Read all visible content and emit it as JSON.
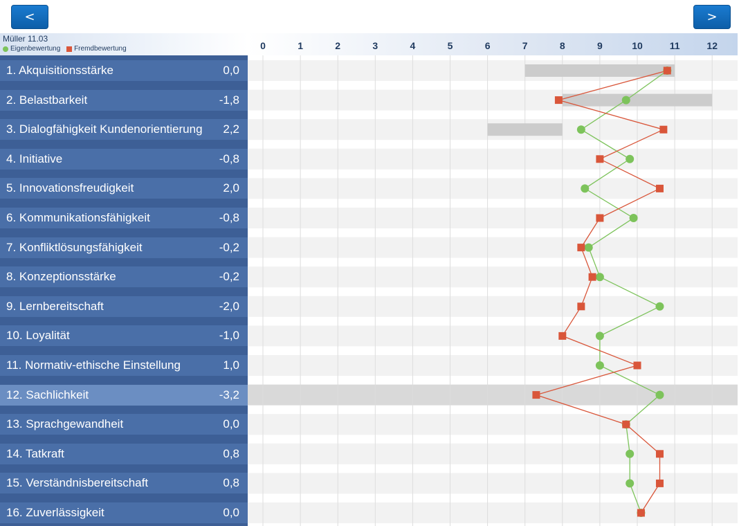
{
  "nav": {
    "prev_label": "<",
    "next_label": ">"
  },
  "header": {
    "person": "Müller 11.03",
    "legend": {
      "self_label": "Eigenbewertung",
      "other_label": "Fremdbewertung"
    }
  },
  "colors": {
    "self": "#7dc35b",
    "other": "#d9563a",
    "range_bar": "#cccccc",
    "row_stripe": "#f2f2f2",
    "selected_row": "#d9d9d9",
    "gridline": "#dddddd",
    "axis_text": "#1f3a5f"
  },
  "rows": [
    {
      "label": "1. Akquisitionsstärke",
      "diff": "0,0"
    },
    {
      "label": "2. Belastbarkeit",
      "diff": "-1,8"
    },
    {
      "label": "3. Dialogfähigkeit Kundenorientierung",
      "diff": "2,2"
    },
    {
      "label": "4. Initiative",
      "diff": "-0,8"
    },
    {
      "label": "5. Innovationsfreudigkeit",
      "diff": "2,0"
    },
    {
      "label": "6. Kommunikationsfähigkeit",
      "diff": "-0,8"
    },
    {
      "label": "7. Konfliktlösungsfähigkeit",
      "diff": "-0,2"
    },
    {
      "label": "8. Konzeptionsstärke",
      "diff": "-0,2"
    },
    {
      "label": "9. Lernbereitschaft",
      "diff": "-2,0"
    },
    {
      "label": "10. Loyalität",
      "diff": "-1,0"
    },
    {
      "label": "11. Normativ-ethische Einstellung",
      "diff": "1,0"
    },
    {
      "label": "12. Sachlichkeit",
      "diff": "-3,2",
      "selected": true
    },
    {
      "label": "13. Sprachgewandheit",
      "diff": "0,0"
    },
    {
      "label": "14. Tatkraft",
      "diff": "0,8"
    },
    {
      "label": "15. Verständnisbereitschaft",
      "diff": "0,8"
    },
    {
      "label": "16. Zuverlässigkeit",
      "diff": "0,0"
    }
  ],
  "chart_data": {
    "type": "scatter",
    "x_ticks": [
      "0",
      "1",
      "2",
      "3",
      "4",
      "5",
      "6",
      "7",
      "8",
      "9",
      "10",
      "11",
      "12"
    ],
    "xlim": [
      0,
      12.6
    ],
    "grid": true,
    "legend_placement": "top-left",
    "series": [
      {
        "name": "Eigenbewertung",
        "marker": "circle",
        "values": [
          10.8,
          9.7,
          8.5,
          9.8,
          8.6,
          9.9,
          8.7,
          9.0,
          10.6,
          9.0,
          9.0,
          10.6,
          9.7,
          9.8,
          9.8,
          10.1
        ]
      },
      {
        "name": "Fremdbewertung",
        "marker": "square",
        "values": [
          10.8,
          7.9,
          10.7,
          9.0,
          10.6,
          9.0,
          8.5,
          8.8,
          8.5,
          8.0,
          10.0,
          7.3,
          9.7,
          10.6,
          10.6,
          10.1
        ]
      }
    ],
    "ranges": [
      {
        "row": 0,
        "from": 7,
        "to": 11
      },
      {
        "row": 1,
        "from": 8,
        "to": 12
      },
      {
        "row": 2,
        "from": 6,
        "to": 8
      }
    ]
  }
}
